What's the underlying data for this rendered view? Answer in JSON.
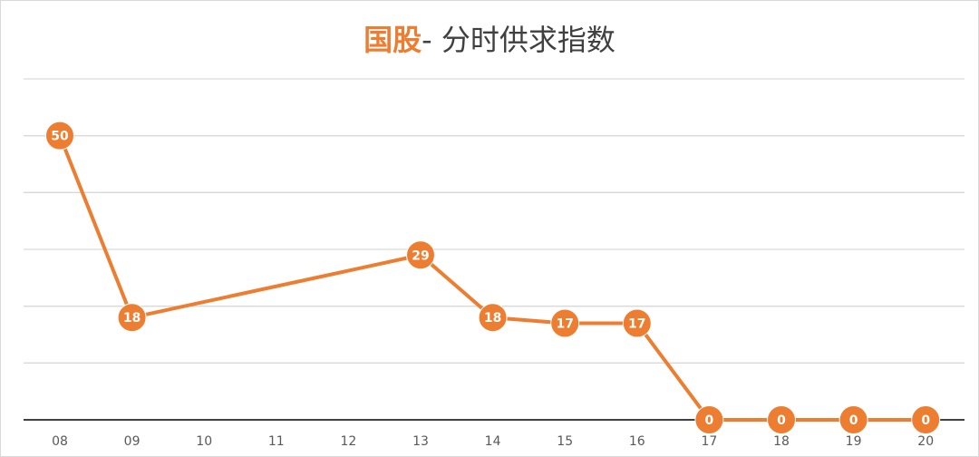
{
  "chart_data": {
    "type": "line",
    "title_accent": "国股",
    "title_rest": "- 分时供求指数",
    "categories": [
      "08",
      "09",
      "10",
      "11",
      "12",
      "13",
      "14",
      "15",
      "16",
      "17",
      "18",
      "19",
      "20"
    ],
    "series": [
      {
        "color": "#ed7d31",
        "points": [
          {
            "x": "08",
            "y": 50
          },
          {
            "x": "09",
            "y": 18
          },
          {
            "x": "13",
            "y": 29
          },
          {
            "x": "14",
            "y": 18
          },
          {
            "x": "15",
            "y": 17
          },
          {
            "x": "16",
            "y": 17
          },
          {
            "x": "17",
            "y": 0
          },
          {
            "x": "18",
            "y": 0
          },
          {
            "x": "19",
            "y": 0
          },
          {
            "x": "20",
            "y": 0
          }
        ]
      }
    ],
    "ylim": [
      0,
      60
    ],
    "grid": true,
    "legend": "none"
  }
}
